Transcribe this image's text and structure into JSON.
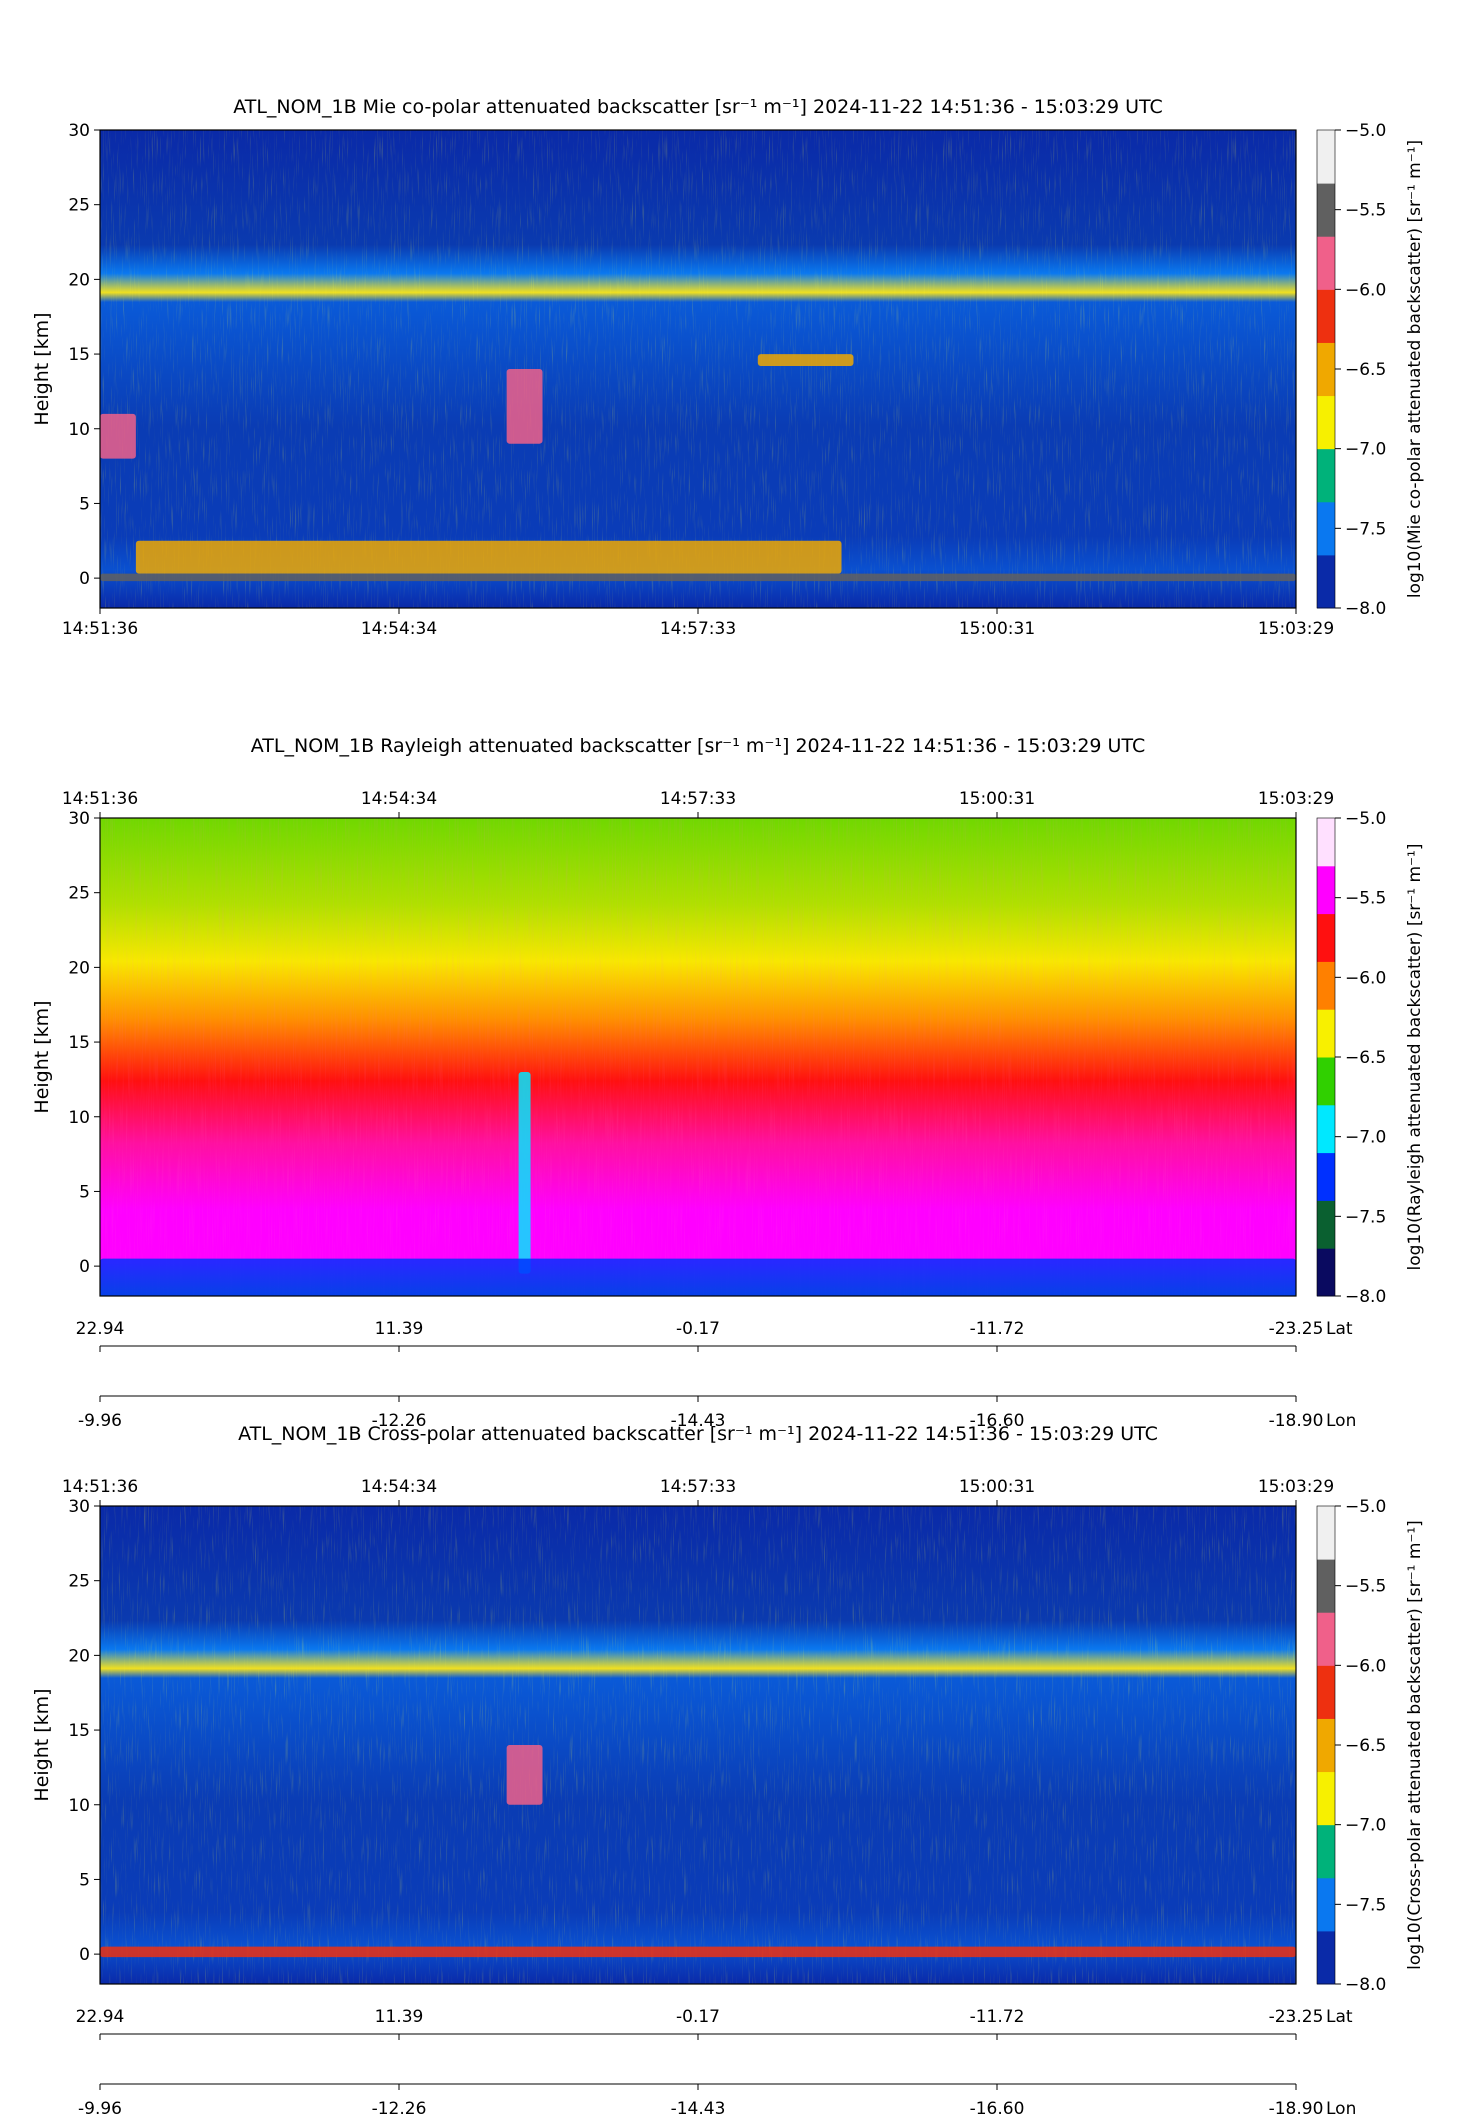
{
  "chart_data": [
    {
      "type": "heatmap",
      "title": "ATL_NOM_1B Mie co-polar attenuated backscatter [sr⁻¹ m⁻¹]    2024-11-22    14:51:36 - 15:03:29 UTC",
      "ylabel": "Height [km]",
      "ylim": [
        -2,
        30
      ],
      "yticks": [
        "30",
        "25",
        "20",
        "15",
        "10",
        "5",
        "0"
      ],
      "time_ticks": [
        "14:51:36",
        "14:54:34",
        "14:57:33",
        "15:00:31",
        "15:03:29"
      ],
      "time_axis_position": "bottom",
      "lat_ticks": [],
      "lon_ticks": [],
      "colorbar": {
        "label": "log10(Mie co-polar attenuated backscatter) [sr⁻¹ m⁻¹]",
        "ticks": [
          "-5.0",
          "-5.5",
          "-6.0",
          "-6.5",
          "-7.0",
          "-7.5",
          "-8.0"
        ],
        "range": [
          -8.0,
          -5.0
        ],
        "colormap": "calipso",
        "colors": [
          "#0a2aa8",
          "#0a78f0",
          "#00b27a",
          "#f7f000",
          "#f0a800",
          "#ee3010",
          "#f0608a",
          "#606060",
          "#f0f0f0"
        ]
      },
      "background": "noise-blue",
      "features": [
        {
          "name": "boundary layer aerosol",
          "x": [
            0.03,
            0.62
          ],
          "height_km": [
            0.3,
            2.5
          ],
          "level": -6.5
        },
        {
          "name": "surface return",
          "x": [
            0.0,
            1.0
          ],
          "height_km": [
            -0.2,
            0.3
          ],
          "level": -5.2
        },
        {
          "name": "cirrus",
          "x": [
            0.55,
            0.63
          ],
          "height_km": [
            14.2,
            15.0
          ],
          "level": -6.5
        },
        {
          "name": "cirrus",
          "x": [
            0.34,
            0.37
          ],
          "height_km": [
            9.0,
            14.0
          ],
          "level": -5.8
        },
        {
          "name": "cirrus",
          "x": [
            0.0,
            0.03
          ],
          "height_km": [
            8.0,
            11.0
          ],
          "level": -5.8
        }
      ]
    },
    {
      "type": "heatmap",
      "title": "ATL_NOM_1B Rayleigh attenuated backscatter [sr⁻¹ m⁻¹]    2024-11-22    14:51:36 - 15:03:29 UTC",
      "ylabel": "Height [km]",
      "ylim": [
        -2,
        30
      ],
      "yticks": [
        "30",
        "25",
        "20",
        "15",
        "10",
        "5",
        "0"
      ],
      "time_ticks": [
        "14:51:36",
        "14:54:34",
        "14:57:33",
        "15:00:31",
        "15:03:29"
      ],
      "time_axis_position": "top",
      "lat_ticks": [
        "22.94",
        "11.39",
        "-0.17",
        "-11.72",
        "-23.25"
      ],
      "lon_ticks": [
        "-9.96",
        "-12.26",
        "-14.43",
        "-16.60",
        "-18.90"
      ],
      "lat_label": "Lat",
      "lon_label": "Lon",
      "colorbar": {
        "label": "log10(Rayleigh attenuated backscatter) [sr⁻¹ m⁻¹]",
        "ticks": [
          "-5.0",
          "-5.5",
          "-6.0",
          "-6.5",
          "-7.0",
          "-7.5",
          "-8.0"
        ],
        "range": [
          -8.0,
          -5.0
        ],
        "colormap": "rainbow",
        "colors": [
          "#0a0a60",
          "#0a6030",
          "#0030ff",
          "#00e8ff",
          "#30d000",
          "#f8f000",
          "#ff8000",
          "#ff1010",
          "#ff00ff",
          "#ffe0ff"
        ]
      },
      "background": "altitude-gradient",
      "features": [
        {
          "name": "cloud column",
          "x": [
            0.35,
            0.36
          ],
          "height_km": [
            -0.5,
            13.0
          ],
          "level": -7.0
        },
        {
          "name": "surface",
          "x": [
            0.0,
            1.0
          ],
          "height_km": [
            -2.0,
            0.5
          ],
          "level": -7.5
        }
      ]
    },
    {
      "type": "heatmap",
      "title": "ATL_NOM_1B Cross-polar attenuated backscatter [sr⁻¹ m⁻¹]    2024-11-22    14:51:36 - 15:03:29 UTC",
      "ylabel": "Height [km]",
      "ylim": [
        -2,
        30
      ],
      "yticks": [
        "30",
        "25",
        "20",
        "15",
        "10",
        "5",
        "0"
      ],
      "time_ticks": [
        "14:51:36",
        "14:54:34",
        "14:57:33",
        "15:00:31",
        "15:03:29"
      ],
      "time_axis_position": "top",
      "lat_ticks": [
        "22.94",
        "11.39",
        "-0.17",
        "-11.72",
        "-23.25"
      ],
      "lon_ticks": [
        "-9.96",
        "-12.26",
        "-14.43",
        "-16.60",
        "-18.90"
      ],
      "lat_label": "Lat",
      "lon_label": "Lon",
      "colorbar": {
        "label": "log10(Cross-polar attenuated backscatter) [sr⁻¹ m⁻¹]",
        "ticks": [
          "-5.0",
          "-5.5",
          "-6.0",
          "-6.5",
          "-7.0",
          "-7.5",
          "-8.0"
        ],
        "range": [
          -8.0,
          -5.0
        ],
        "colormap": "calipso",
        "colors": [
          "#0a2aa8",
          "#0a78f0",
          "#00b27a",
          "#f7f000",
          "#f0a800",
          "#ee3010",
          "#f0608a",
          "#606060",
          "#f0f0f0"
        ]
      },
      "background": "noise-blue",
      "features": [
        {
          "name": "surface return",
          "x": [
            0.0,
            1.0
          ],
          "height_km": [
            -0.2,
            0.5
          ],
          "level": -6.2
        },
        {
          "name": "cirrus",
          "x": [
            0.34,
            0.37
          ],
          "height_km": [
            10.0,
            14.0
          ],
          "level": -5.8
        }
      ]
    }
  ]
}
